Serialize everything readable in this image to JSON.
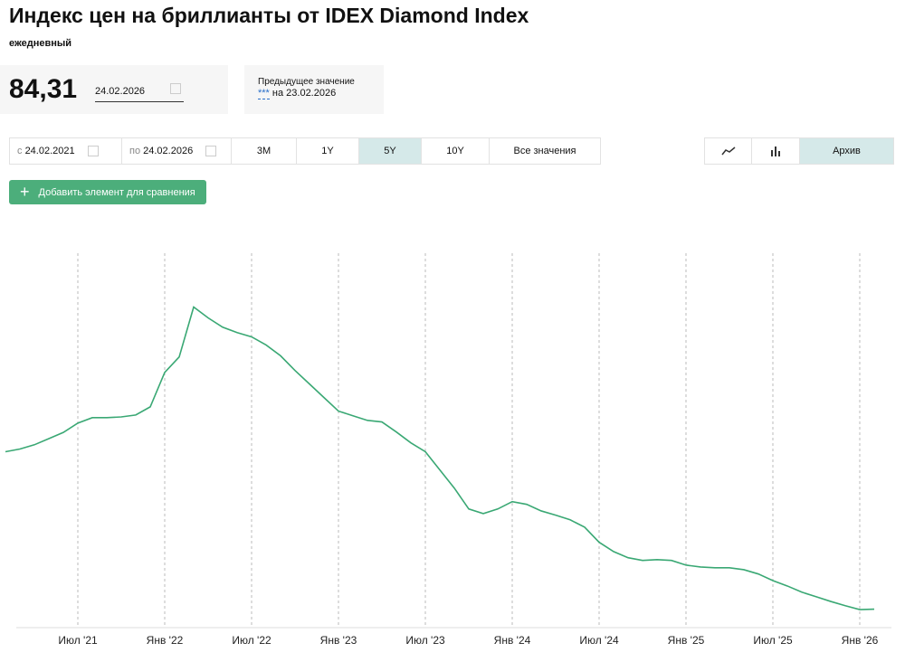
{
  "header": {
    "title": "Индекс цен на бриллианты от IDEX Diamond Index",
    "frequency": "ежедневный"
  },
  "value_panel": {
    "value": "84,31",
    "date": "24.02.2026",
    "previous_label": "Предыдущее значение",
    "previous_value": "***",
    "previous_date": "на 23.02.2026"
  },
  "controls": {
    "from_label": "с",
    "from_date": "24.02.2021",
    "to_label": "по",
    "to_date": "24.02.2026",
    "periods": [
      "3M",
      "1Y",
      "5Y",
      "10Y",
      "Все значения"
    ],
    "archive": "Архив",
    "compare": "Добавить элемент для сравнения"
  },
  "chart_data": {
    "type": "line",
    "color": "#3aa874",
    "ylim": [
      80,
      170
    ],
    "x": [
      "2021-02",
      "2021-03",
      "2021-04",
      "2021-05",
      "2021-06",
      "2021-07",
      "2021-08",
      "2021-09",
      "2021-10",
      "2021-11",
      "2021-12",
      "2022-01",
      "2022-02",
      "2022-03",
      "2022-04",
      "2022-05",
      "2022-06",
      "2022-07",
      "2022-08",
      "2022-09",
      "2022-10",
      "2022-11",
      "2022-12",
      "2023-01",
      "2023-02",
      "2023-03",
      "2023-04",
      "2023-05",
      "2023-06",
      "2023-07",
      "2023-08",
      "2023-09",
      "2023-10",
      "2023-11",
      "2023-12",
      "2024-01",
      "2024-02",
      "2024-03",
      "2024-04",
      "2024-05",
      "2024-06",
      "2024-07",
      "2024-08",
      "2024-09",
      "2024-10",
      "2024-11",
      "2024-12",
      "2025-01",
      "2025-02",
      "2025-03",
      "2025-04",
      "2025-05",
      "2025-06",
      "2025-07",
      "2025-08",
      "2025-09",
      "2025-10",
      "2025-11",
      "2025-12",
      "2026-01",
      "2026-02"
    ],
    "values": [
      125,
      125.7,
      126.8,
      128.4,
      130,
      132.4,
      133.8,
      133.8,
      134,
      134.5,
      136.6,
      145.5,
      149.5,
      162.4,
      159.6,
      157.2,
      155.8,
      154.7,
      152.6,
      149.8,
      146,
      142.5,
      139,
      135.5,
      134.3,
      133.1,
      132.7,
      130.1,
      127.3,
      125,
      120.3,
      115.6,
      110.2,
      109,
      110.2,
      112.1,
      111.4,
      109.7,
      108.6,
      107.4,
      105.5,
      101.6,
      99.2,
      97.6,
      96.9,
      97.1,
      96.9,
      95.7,
      95.2,
      95,
      95,
      94.5,
      93.4,
      91.7,
      90.3,
      88.7,
      87.5,
      86.3,
      85.2,
      84.2,
      84.31
    ],
    "xticks": [
      {
        "value": "2021-07",
        "label": "Июл '21"
      },
      {
        "value": "2022-01",
        "label": "Янв '22"
      },
      {
        "value": "2022-07",
        "label": "Июл '22"
      },
      {
        "value": "2023-01",
        "label": "Янв '23"
      },
      {
        "value": "2023-07",
        "label": "Июл '23"
      },
      {
        "value": "2024-01",
        "label": "Янв '24"
      },
      {
        "value": "2024-07",
        "label": "Июл '24"
      },
      {
        "value": "2025-01",
        "label": "Янв '25"
      },
      {
        "value": "2025-07",
        "label": "Июл '25"
      },
      {
        "value": "2026-01",
        "label": "Янв '26"
      }
    ],
    "grid": true
  }
}
